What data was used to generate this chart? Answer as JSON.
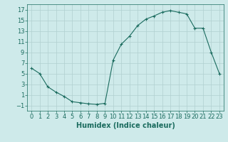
{
  "x": [
    0,
    1,
    2,
    3,
    4,
    5,
    6,
    7,
    8,
    9,
    10,
    11,
    12,
    13,
    14,
    15,
    16,
    17,
    18,
    19,
    20,
    21,
    22,
    23
  ],
  "y": [
    6,
    5,
    2.5,
    1.5,
    0.7,
    -0.3,
    -0.5,
    -0.7,
    -0.8,
    -0.6,
    7.5,
    10.5,
    12,
    14,
    15.2,
    15.8,
    16.5,
    16.8,
    16.5,
    16.2,
    13.5,
    13.5,
    9,
    5
  ],
  "line_color": "#1a6b5e",
  "marker": "+",
  "marker_size": 3,
  "marker_linewidth": 0.8,
  "xlabel": "Humidex (Indice chaleur)",
  "xlim": [
    -0.5,
    23.5
  ],
  "ylim": [
    -2,
    18
  ],
  "yticks": [
    -1,
    1,
    3,
    5,
    7,
    9,
    11,
    13,
    15,
    17
  ],
  "xticks": [
    0,
    1,
    2,
    3,
    4,
    5,
    6,
    7,
    8,
    9,
    10,
    11,
    12,
    13,
    14,
    15,
    16,
    17,
    18,
    19,
    20,
    21,
    22,
    23
  ],
  "bg_color": "#ceeaea",
  "grid_color": "#b0d0d0",
  "line_width": 0.8,
  "tick_color": "#1a6b5e",
  "label_color": "#1a6b5e",
  "xlabel_fontsize": 7,
  "tick_fontsize": 6
}
